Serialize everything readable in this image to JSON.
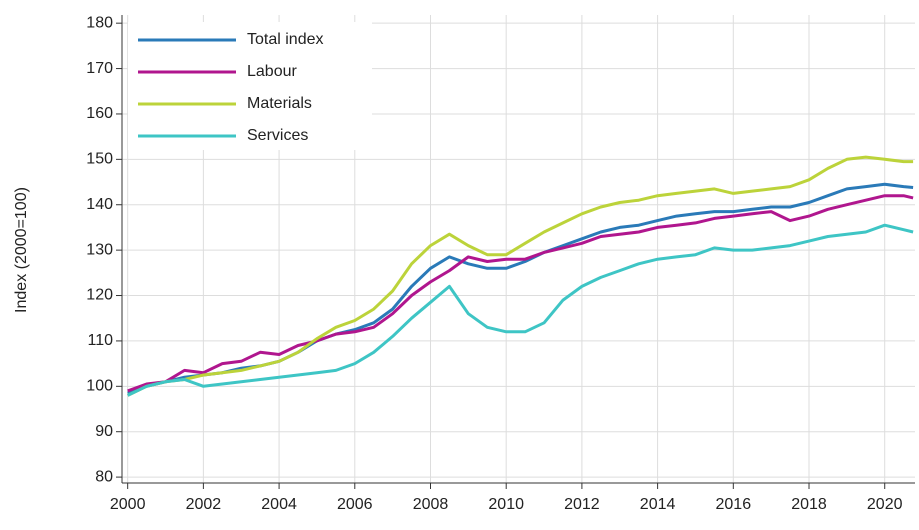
{
  "chart_data": {
    "type": "line",
    "y_label": "Index (2000=100)",
    "x": [
      2000,
      2000.5,
      2001,
      2001.5,
      2002,
      2002.5,
      2003,
      2003.5,
      2004,
      2004.5,
      2005,
      2005.5,
      2006,
      2006.5,
      2007,
      2007.5,
      2008,
      2008.5,
      2009,
      2009.5,
      2010,
      2010.5,
      2011,
      2011.5,
      2012,
      2012.5,
      2013,
      2013.5,
      2014,
      2014.5,
      2015,
      2015.5,
      2016,
      2016.5,
      2017,
      2017.5,
      2018,
      2018.5,
      2019,
      2019.5,
      2020,
      2020.5,
      2020.75
    ],
    "series": [
      {
        "name": "Total index",
        "color": "#2a7ab8",
        "values": [
          98.5,
          100,
          101,
          102,
          102.5,
          103,
          104,
          104.5,
          105.5,
          107.5,
          110,
          111.5,
          112.5,
          114,
          117,
          122,
          126,
          128.5,
          127,
          126,
          126,
          127.5,
          129.5,
          131,
          132.5,
          134,
          135,
          135.5,
          136.5,
          137.5,
          138,
          138.5,
          138.5,
          139,
          139.5,
          139.5,
          140.5,
          142,
          143.5,
          144,
          144.5,
          144,
          143.8
        ]
      },
      {
        "name": "Labour",
        "color": "#b0168e",
        "values": [
          99,
          100.5,
          101,
          103.5,
          103,
          105,
          105.5,
          107.5,
          107,
          109,
          110,
          111.5,
          112,
          113,
          116,
          120,
          123,
          125.5,
          128.5,
          127.5,
          128,
          128,
          129.5,
          130.5,
          131.5,
          133,
          133.5,
          134,
          135,
          135.5,
          136,
          137,
          137.5,
          138,
          138.5,
          136.5,
          137.5,
          139,
          140,
          141,
          142,
          142,
          141.5
        ]
      },
      {
        "name": "Materials",
        "color": "#bcd33a",
        "values": [
          98,
          100,
          101,
          101.5,
          102.5,
          103,
          103.5,
          104.5,
          105.5,
          107.5,
          110.5,
          113,
          114.5,
          117,
          121,
          127,
          131,
          133.5,
          131,
          129,
          129,
          131.5,
          134,
          136,
          138,
          139.5,
          140.5,
          141,
          142,
          142.5,
          143,
          143.5,
          142.5,
          143,
          143.5,
          144,
          145.5,
          148,
          150,
          150.5,
          150,
          149.5,
          149.5
        ]
      },
      {
        "name": "Services",
        "color": "#3ec5c5",
        "values": [
          98,
          100,
          101,
          101.5,
          100,
          100.5,
          101,
          101.5,
          102,
          102.5,
          103,
          103.5,
          105,
          107.5,
          111,
          115,
          118.5,
          122,
          116,
          113,
          112,
          112,
          114,
          119,
          122,
          124,
          125.5,
          127,
          128,
          128.5,
          129,
          130.5,
          130,
          130,
          130.5,
          131,
          132,
          133,
          133.5,
          134,
          135.5,
          134.5,
          134
        ]
      }
    ],
    "xlim": [
      1999.85,
      2020.8
    ],
    "ylim": [
      78.7,
      181.8
    ],
    "xticks": [
      2000,
      2002,
      2004,
      2006,
      2008,
      2010,
      2012,
      2014,
      2016,
      2018,
      2020
    ],
    "yticks": [
      80,
      90,
      100,
      110,
      120,
      130,
      140,
      150,
      160,
      170,
      180
    ],
    "grid": true
  }
}
